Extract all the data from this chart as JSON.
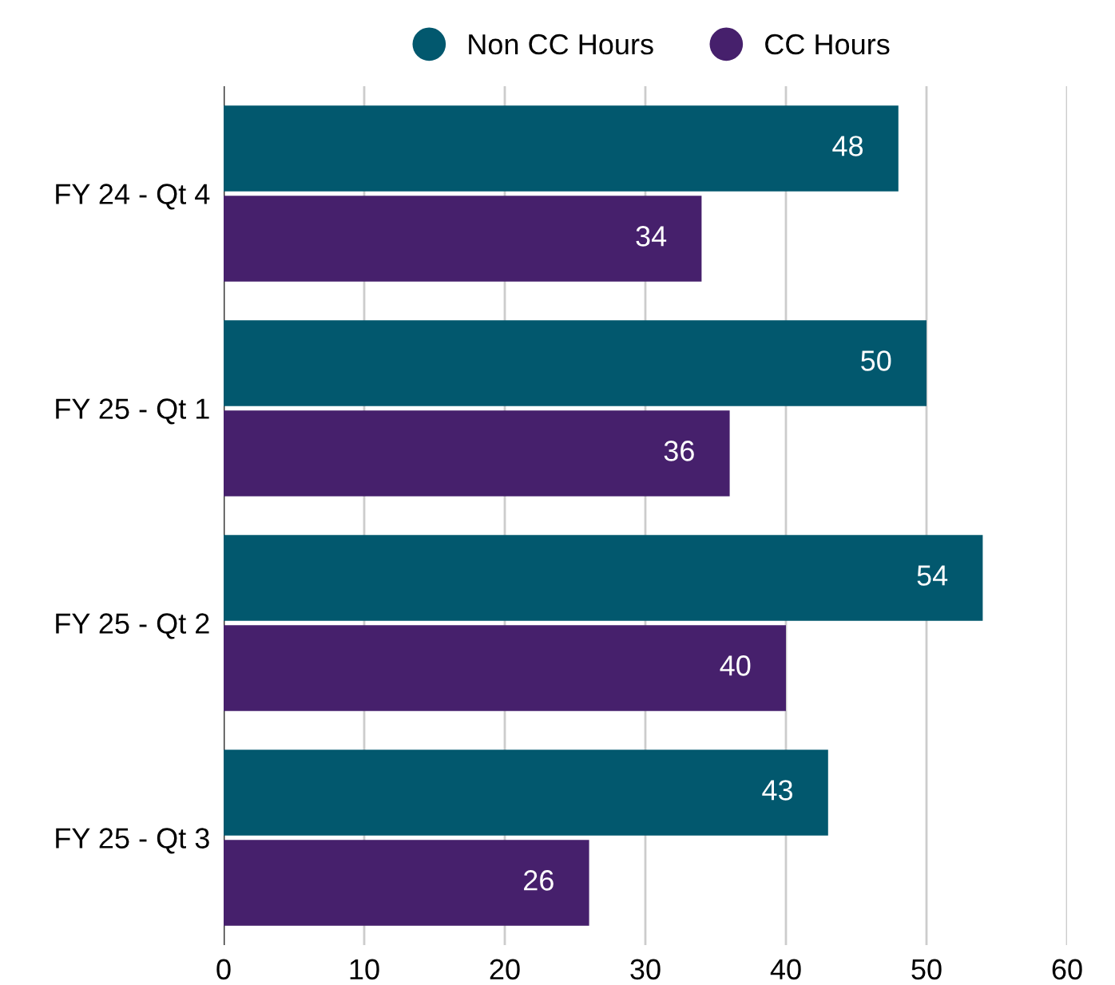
{
  "chart_data": {
    "type": "bar",
    "orientation": "horizontal",
    "categories": [
      "FY 24 - Qt 4",
      "FY 25 - Qt 1",
      "FY 25 - Qt 2",
      "FY 25 - Qt 3"
    ],
    "series": [
      {
        "name": "Non CC Hours",
        "color": "#02586e",
        "values": [
          48,
          50,
          54,
          43
        ]
      },
      {
        "name": "CC Hours",
        "color": "#46206c",
        "values": [
          34,
          36,
          40,
          26
        ]
      }
    ],
    "xlim": [
      0,
      60
    ],
    "xticks": [
      0,
      10,
      20,
      30,
      40,
      50,
      60
    ],
    "grid": "x",
    "legend": "top",
    "data_labels": true
  }
}
